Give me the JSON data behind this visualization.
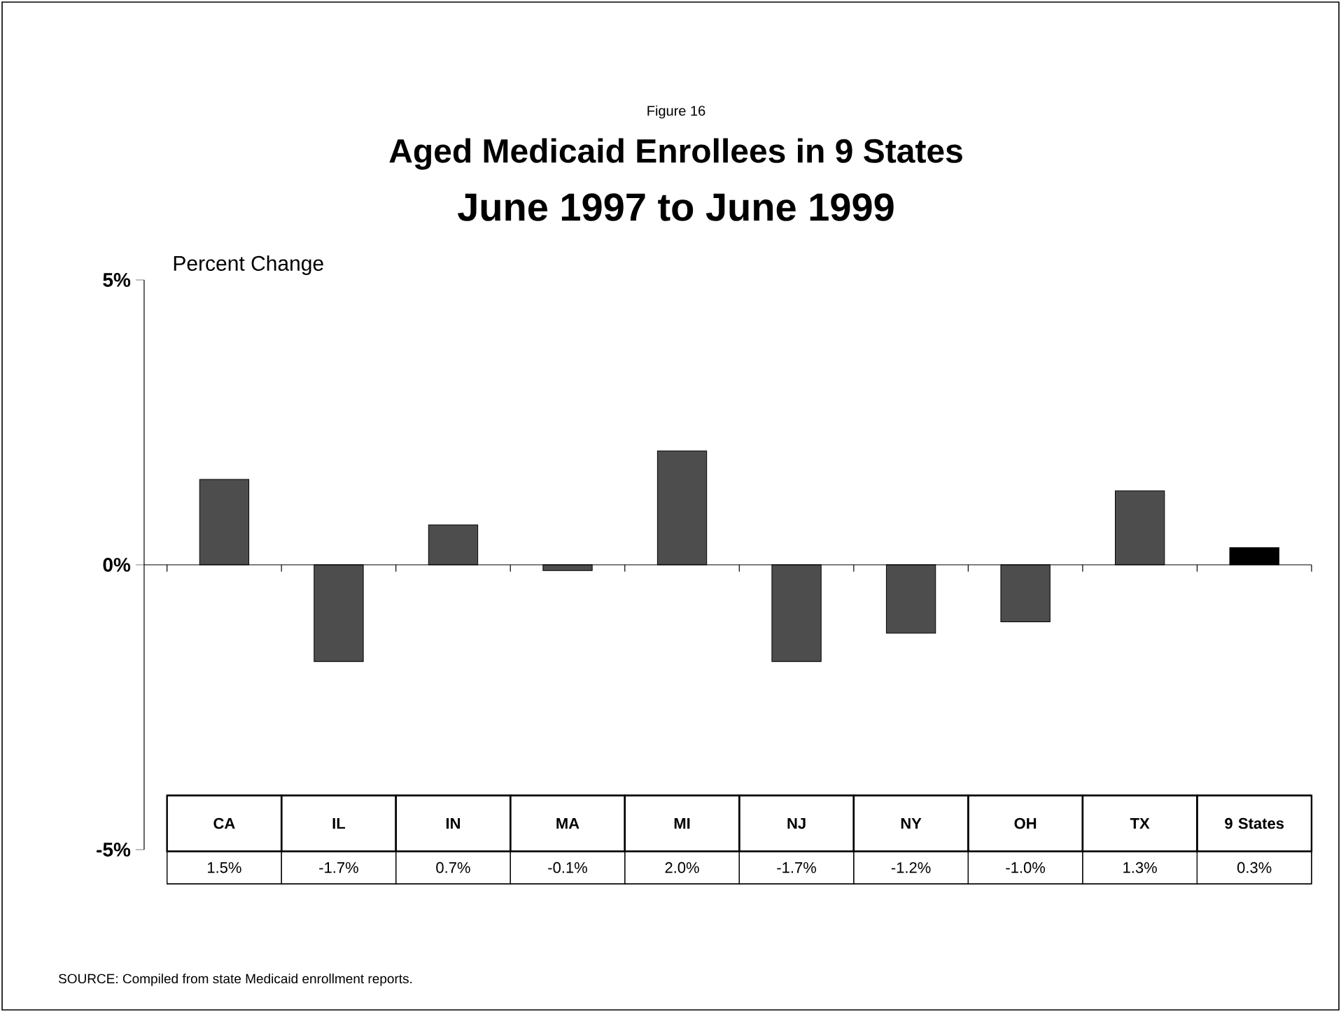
{
  "chart_data": {
    "type": "bar",
    "title": "Aged Medicaid Enrollees in 9 States",
    "subtitle": "June 1997 to June 1999",
    "ylabel": "Percent Change",
    "categories": [
      "CA",
      "IL",
      "IN",
      "MA",
      "MI",
      "NJ",
      "NY",
      "OH",
      "TX",
      "9 States"
    ],
    "values": [
      1.5,
      -1.7,
      0.7,
      -0.1,
      2.0,
      -1.7,
      -1.2,
      -1.0,
      1.3,
      0.3
    ],
    "value_labels": [
      "1.5%",
      "-1.7%",
      "0.7%",
      "-0.1%",
      "2.0%",
      "-1.7%",
      "-1.2%",
      "-1.0%",
      "1.3%",
      "0.3%"
    ],
    "colors": [
      "#4d4d4d",
      "#4d4d4d",
      "#4d4d4d",
      "#4d4d4d",
      "#4d4d4d",
      "#4d4d4d",
      "#4d4d4d",
      "#4d4d4d",
      "#4d4d4d",
      "#000000"
    ],
    "ylim": [
      -5,
      5
    ],
    "yticks": [
      {
        "value": -5,
        "label": "-5%"
      },
      {
        "value": 0,
        "label": "0%"
      },
      {
        "value": 5,
        "label": "5%"
      }
    ],
    "annotations": [
      "Figure 16",
      "SOURCE: Compiled from state Medicaid enrollment reports."
    ]
  }
}
